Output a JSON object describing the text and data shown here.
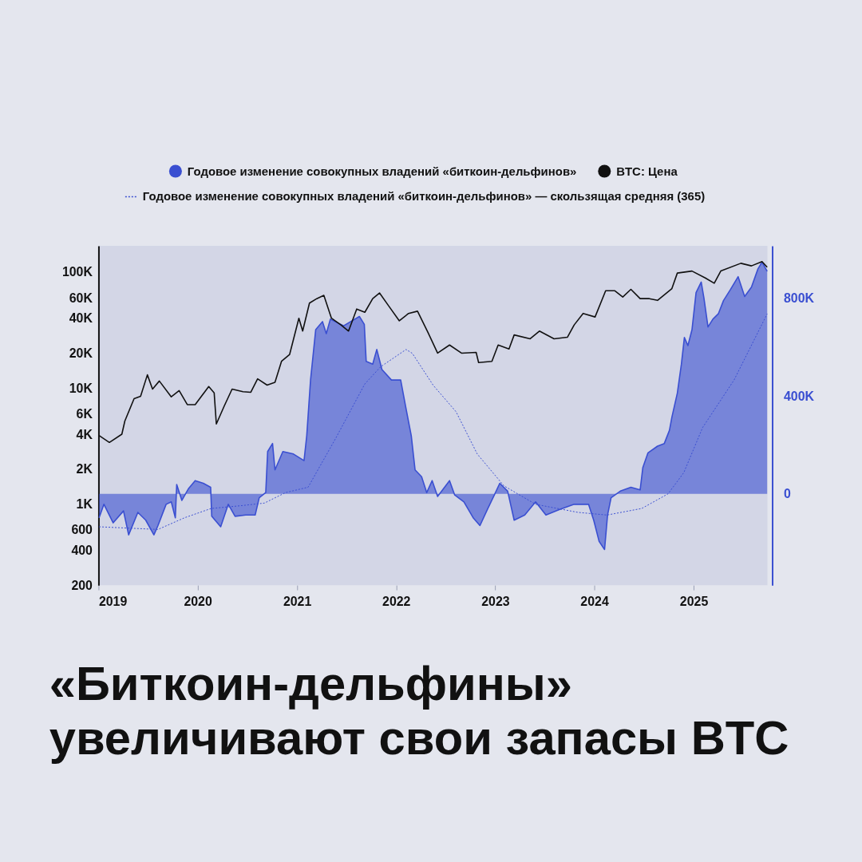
{
  "chart_data": {
    "type": "line",
    "title": "«Биткоин-дельфины» увеличивают свои запасы BTC",
    "legend": "top",
    "grid": false,
    "log": "y",
    "xlim": [
      "2019-01-01",
      "2025-09-30"
    ],
    "xticks": [
      {
        "value": "2019-01-01",
        "label": "2019"
      },
      {
        "value": "2020-01-01",
        "label": "2020"
      },
      {
        "value": "2021-01-01",
        "label": "2021"
      },
      {
        "value": "2022-01-01",
        "label": "2022"
      },
      {
        "value": "2023-01-01",
        "label": "2023"
      },
      {
        "value": "2024-01-01",
        "label": "2024"
      },
      {
        "value": "2025-01-01",
        "label": "2025"
      }
    ],
    "ylim": [
      200,
      168000
    ],
    "yticks": [
      {
        "value": 200,
        "label": "200"
      },
      {
        "value": 400,
        "label": "400"
      },
      {
        "value": 600,
        "label": "600"
      },
      {
        "value": 1000,
        "label": "1K"
      },
      {
        "value": 2000,
        "label": "2K"
      },
      {
        "value": 4000,
        "label": "4K"
      },
      {
        "value": 6000,
        "label": "6K"
      },
      {
        "value": 10000,
        "label": "10K"
      },
      {
        "value": 20000,
        "label": "20K"
      },
      {
        "value": 40000,
        "label": "40K"
      },
      {
        "value": 60000,
        "label": "60K"
      },
      {
        "value": 100000,
        "label": "100K"
      }
    ],
    "y2lim": [
      -374000,
      1015000
    ],
    "y2ticks": [
      0,
      {
        "value": 400000,
        "label": "400K"
      },
      {
        "value": 800000,
        "label": "800K"
      }
    ],
    "series": [
      {
        "name": "Годовое изменение совокупных владений «биткоин-дельфинов»",
        "type": "area",
        "axis": "y2",
        "color": "#3a4fd1",
        "x": [
          "2019-01-03",
          "2019-01-21",
          "2019-02-24",
          "2019-04-03",
          "2019-04-22",
          "2019-05-26",
          "2019-06-24",
          "2019-07-24",
          "2019-08-08",
          "2019-09-07",
          "2019-09-26",
          "2019-10-11",
          "2019-10-16",
          "2019-11-04",
          "2019-11-29",
          "2019-12-23",
          "2020-01-22",
          "2020-02-18",
          "2020-02-22",
          "2020-03-26",
          "2020-04-23",
          "2020-05-18",
          "2020-06-26",
          "2020-07-31",
          "2020-08-15",
          "2020-09-08",
          "2020-09-15",
          "2020-10-03",
          "2020-10-12",
          "2020-11-10",
          "2020-12-19",
          "2021-01-27",
          "2021-02-06",
          "2021-02-20",
          "2021-03-11",
          "2021-04-05",
          "2021-04-19",
          "2021-05-04",
          "2021-06-22",
          "2021-08-19",
          "2021-09-06",
          "2021-09-13",
          "2021-10-07",
          "2021-10-22",
          "2021-11-10",
          "2021-12-15",
          "2022-01-18",
          "2022-02-07",
          "2022-02-26",
          "2022-03-12",
          "2022-04-05",
          "2022-04-24",
          "2022-05-14",
          "2022-06-03",
          "2022-07-17",
          "2022-08-05",
          "2022-09-08",
          "2022-10-12",
          "2022-11-06",
          "2022-12-05",
          "2022-12-29",
          "2023-01-18",
          "2023-02-16",
          "2023-03-12",
          "2023-04-20",
          "2023-05-30",
          "2023-07-07",
          "2023-08-25",
          "2023-10-19",
          "2023-12-11",
          "2023-12-30",
          "2024-01-19",
          "2024-02-08",
          "2024-02-19",
          "2024-03-03",
          "2024-04-06",
          "2024-05-15",
          "2024-06-18",
          "2024-06-28",
          "2024-07-17",
          "2024-08-21",
          "2024-09-15",
          "2024-10-04",
          "2024-10-13",
          "2024-11-02",
          "2024-11-17",
          "2024-11-28",
          "2024-12-11",
          "2024-12-26",
          "2025-01-10",
          "2025-01-29",
          "2025-02-08",
          "2025-02-23",
          "2025-03-13",
          "2025-04-02",
          "2025-04-21",
          "2025-05-16",
          "2025-06-14",
          "2025-07-08",
          "2025-08-02",
          "2025-08-26",
          "2025-09-10",
          "2025-09-29"
        ],
        "values": [
          -98000,
          -43000,
          -119000,
          -70000,
          -168000,
          -76000,
          -108000,
          -168000,
          -130000,
          -43000,
          -33000,
          -98000,
          38000,
          -27000,
          22000,
          54000,
          43000,
          27000,
          -92000,
          -135000,
          -43000,
          -92000,
          -87000,
          -87000,
          -16000,
          5000,
          173000,
          206000,
          98000,
          173000,
          163000,
          136000,
          238000,
          466000,
          672000,
          705000,
          656000,
          715000,
          688000,
          726000,
          694000,
          542000,
          531000,
          591000,
          509000,
          466000,
          466000,
          347000,
          238000,
          98000,
          70000,
          5000,
          54000,
          -11000,
          54000,
          -5000,
          -33000,
          -98000,
          -130000,
          -60000,
          -5000,
          43000,
          11000,
          -108000,
          -87000,
          -33000,
          -87000,
          -65000,
          -43000,
          -43000,
          -108000,
          -195000,
          -228000,
          -87000,
          -16000,
          11000,
          27000,
          16000,
          108000,
          168000,
          195000,
          206000,
          260000,
          314000,
          412000,
          531000,
          640000,
          607000,
          672000,
          824000,
          867000,
          802000,
          683000,
          715000,
          737000,
          791000,
          835000,
          889000,
          808000,
          846000,
          921000,
          949000,
          911000
        ]
      },
      {
        "name": "BTC: Цена",
        "color": "#111111",
        "x": [
          "2019-01-03",
          "2019-02-10",
          "2019-03-28",
          "2019-04-08",
          "2019-05-12",
          "2019-06-05",
          "2019-06-30",
          "2019-07-19",
          "2019-08-13",
          "2019-09-26",
          "2019-10-25",
          "2019-11-24",
          "2019-12-23",
          "2020-02-11",
          "2020-03-02",
          "2020-03-10",
          "2020-04-08",
          "2020-05-07",
          "2020-06-16",
          "2020-07-15",
          "2020-08-09",
          "2020-09-13",
          "2020-10-12",
          "2020-11-05",
          "2020-12-05",
          "2021-01-08",
          "2021-01-22",
          "2021-02-16",
          "2021-03-15",
          "2021-04-10",
          "2021-05-08",
          "2021-06-12",
          "2021-07-10",
          "2021-08-09",
          "2021-09-08",
          "2021-10-07",
          "2021-11-01",
          "2021-12-05",
          "2022-01-13",
          "2022-02-16",
          "2022-03-21",
          "2022-04-29",
          "2022-06-03",
          "2022-07-17",
          "2022-08-30",
          "2022-10-23",
          "2022-11-01",
          "2022-12-20",
          "2023-01-12",
          "2023-02-21",
          "2023-03-12",
          "2023-05-10",
          "2023-06-13",
          "2023-08-06",
          "2023-09-24",
          "2023-10-19",
          "2023-11-21",
          "2024-01-04",
          "2024-02-12",
          "2024-03-17",
          "2024-04-15",
          "2024-05-15",
          "2024-06-18",
          "2024-07-22",
          "2024-08-21",
          "2024-10-13",
          "2024-11-02",
          "2024-12-26",
          "2025-02-13",
          "2025-03-18",
          "2025-04-11",
          "2025-06-24",
          "2025-08-02",
          "2025-09-10",
          "2025-09-29"
        ],
        "values": [
          3900,
          3400,
          4000,
          5200,
          8100,
          8500,
          13000,
          9800,
          11500,
          8400,
          9500,
          7200,
          7200,
          10300,
          9100,
          4900,
          7000,
          9800,
          9300,
          9200,
          12000,
          10600,
          11200,
          17000,
          19500,
          40000,
          31000,
          54000,
          59000,
          63000,
          40000,
          35000,
          31000,
          48000,
          45000,
          59000,
          66000,
          51000,
          38000,
          44000,
          46000,
          30000,
          20000,
          23500,
          20000,
          20300,
          16600,
          17000,
          23500,
          21700,
          28700,
          26600,
          31000,
          26600,
          27400,
          35000,
          44000,
          41000,
          69000,
          69000,
          61000,
          71000,
          59000,
          59000,
          57000,
          72000,
          98000,
          102000,
          89000,
          80000,
          102000,
          119000,
          113000,
          123000,
          110000
        ]
      },
      {
        "name": "Годовое изменение совокупных владений «биткоин-дельфинов» — скользящая средняя (365)",
        "type": "line",
        "axis": "y2",
        "line_style": "dotted",
        "color": "#3a4fd1",
        "x": [
          "2019-01-03",
          "2019-08-08",
          "2019-11-14",
          "2020-02-20",
          "2020-06-06",
          "2020-09-03",
          "2020-11-20",
          "2021-02-11",
          "2021-05-24",
          "2021-09-08",
          "2021-11-05",
          "2022-02-07",
          "2022-03-02",
          "2022-05-18",
          "2022-08-10",
          "2022-10-27",
          "2023-02-02",
          "2023-05-30",
          "2023-11-02",
          "2024-02-17",
          "2024-06-24",
          "2024-09-29",
          "2024-11-26",
          "2025-02-03",
          "2025-05-30",
          "2025-09-29"
        ],
        "values": [
          -135000,
          -146000,
          -98000,
          -60000,
          -49000,
          -38000,
          5000,
          27000,
          228000,
          450000,
          520000,
          591000,
          575000,
          444000,
          336000,
          163000,
          33000,
          -43000,
          -76000,
          -87000,
          -60000,
          0,
          87000,
          271000,
          466000,
          737000
        ]
      }
    ]
  }
}
